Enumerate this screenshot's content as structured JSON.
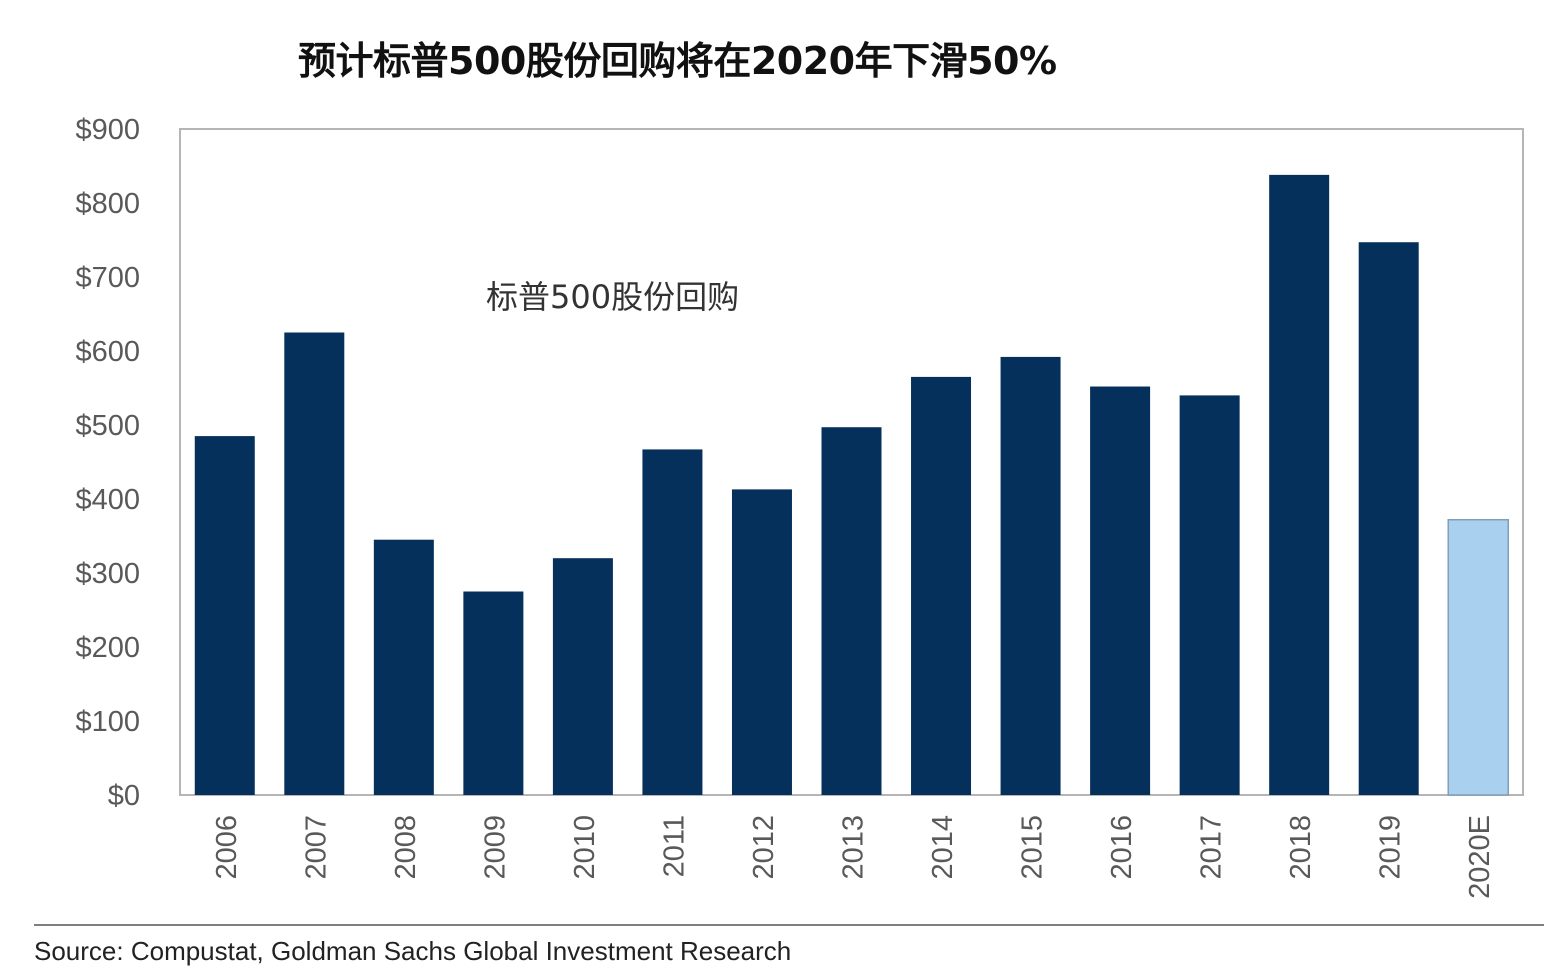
{
  "chart_data": {
    "type": "bar",
    "title": "预计标普500股份回购将在2020年下滑50%",
    "annotation": "标普500股份回购",
    "categories": [
      "2006",
      "2007",
      "2008",
      "2009",
      "2010",
      "2011",
      "2012",
      "2013",
      "2014",
      "2015",
      "2016",
      "2017",
      "2018",
      "2019",
      "2020E"
    ],
    "values": [
      485,
      625,
      345,
      275,
      320,
      467,
      413,
      497,
      565,
      592,
      552,
      540,
      838,
      747,
      372
    ],
    "estimate_index": 14,
    "ylim": [
      0,
      900
    ],
    "yticks": [
      "$0",
      "$100",
      "$200",
      "$300",
      "$400",
      "$500",
      "$600",
      "$700",
      "$800",
      "$900"
    ],
    "xlabel": "",
    "ylabel": "",
    "grid": false,
    "colors": {
      "actual": "#05305c",
      "estimate": "#a9d0ee",
      "estimate_border": "#7f9fb8"
    }
  },
  "source": "Source: Compustat, Goldman Sachs Global Investment Research"
}
